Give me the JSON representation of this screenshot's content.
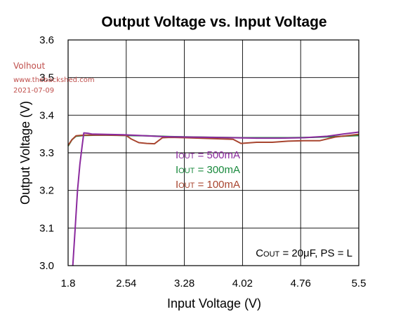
{
  "chart_data": {
    "type": "line",
    "title": "Output Voltage vs. Input Voltage",
    "xlabel": "Input Voltage (V)",
    "ylabel": "Output Voltage (V)",
    "xlim": [
      1.8,
      5.5
    ],
    "ylim": [
      3.0,
      3.6
    ],
    "xticks": [
      1.8,
      2.54,
      3.28,
      4.02,
      4.76,
      5.5
    ],
    "xtick_labels": [
      "1.8",
      "2.54",
      "3.28",
      "4.02",
      "4.76",
      "5.5"
    ],
    "yticks": [
      3.0,
      3.1,
      3.2,
      3.3,
      3.4,
      3.5,
      3.6
    ],
    "ytick_labels": [
      "3.0",
      "3.1",
      "3.2",
      "3.3",
      "3.4",
      "3.5",
      "3.6"
    ],
    "grid": true,
    "series": [
      {
        "name_prefix": "I",
        "name_sub": "OUT",
        "name_suffix": " = 500mA",
        "color": "#8b2a9e",
        "x": [
          1.86,
          1.89,
          1.92,
          1.95,
          1.98,
          2.0,
          2.05,
          2.1,
          2.3,
          2.5,
          2.7,
          3.0,
          3.3,
          3.6,
          3.9,
          4.2,
          4.5,
          4.8,
          5.1,
          5.3,
          5.5
        ],
        "y": [
          3.0,
          3.1,
          3.2,
          3.27,
          3.32,
          3.353,
          3.352,
          3.35,
          3.349,
          3.348,
          3.346,
          3.343,
          3.342,
          3.341,
          3.34,
          3.339,
          3.339,
          3.34,
          3.344,
          3.35,
          3.355
        ]
      },
      {
        "name_prefix": "I",
        "name_sub": "OUT",
        "name_suffix": " = 300mA",
        "color": "#1a8a3e",
        "x": [
          1.8,
          1.85,
          1.9,
          2.0,
          2.2,
          2.5,
          2.8,
          3.1,
          3.4,
          3.7,
          4.0,
          4.3,
          4.6,
          4.9,
          5.2,
          5.5
        ],
        "y": [
          3.318,
          3.335,
          3.344,
          3.346,
          3.347,
          3.346,
          3.345,
          3.343,
          3.342,
          3.341,
          3.34,
          3.34,
          3.34,
          3.341,
          3.343,
          3.346
        ]
      },
      {
        "name_prefix": "I",
        "name_sub": "OUT",
        "name_suffix": " = 100mA",
        "color": "#a8452f",
        "x": [
          1.8,
          1.85,
          1.9,
          2.0,
          2.3,
          2.54,
          2.6,
          2.7,
          2.8,
          2.9,
          3.0,
          3.1,
          3.3,
          3.6,
          3.9,
          4.0,
          4.2,
          4.4,
          4.6,
          4.8,
          5.0,
          5.2,
          5.5
        ],
        "y": [
          3.32,
          3.335,
          3.345,
          3.347,
          3.347,
          3.346,
          3.337,
          3.327,
          3.325,
          3.324,
          3.34,
          3.341,
          3.34,
          3.338,
          3.336,
          3.325,
          3.328,
          3.328,
          3.331,
          3.332,
          3.332,
          3.342,
          3.349
        ]
      }
    ],
    "annotation": {
      "prefix": "C",
      "sub": "OUT",
      "suffix": " = 20μF, PS = L"
    }
  },
  "watermark": {
    "name": "Volhout",
    "url": "www.thebackshed.com",
    "date": "2021-07-09"
  }
}
